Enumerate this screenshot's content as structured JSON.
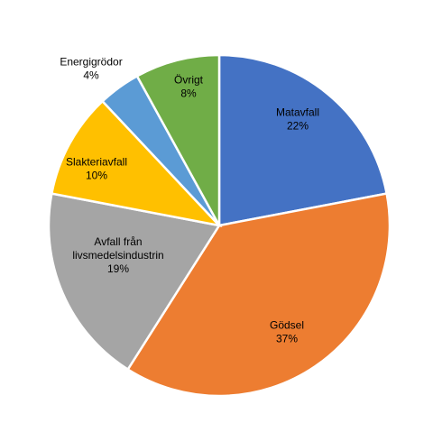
{
  "chart_data": {
    "type": "pie",
    "title": "",
    "slices": [
      {
        "label": "Matavfall",
        "value": 22,
        "display": "22%",
        "color": "#4472C4"
      },
      {
        "label": "Gödsel",
        "value": 37,
        "display": "37%",
        "color": "#ED7D31"
      },
      {
        "label": "Avfall från livsmedelsindustrin",
        "label_lines": [
          "Avfall från",
          "livsmedelsindustrin"
        ],
        "value": 19,
        "display": "19%",
        "color": "#A5A5A5"
      },
      {
        "label": "Slakteriavfall",
        "value": 10,
        "display": "10%",
        "color": "#FFC000"
      },
      {
        "label": "Energigrödor",
        "value": 4,
        "display": "4%",
        "color": "#5B9BD5"
      },
      {
        "label": "Övrigt",
        "value": 8,
        "display": "8%",
        "color": "#70AD47"
      }
    ],
    "start": "12 o'clock",
    "direction": "clockwise",
    "legend": "none"
  }
}
